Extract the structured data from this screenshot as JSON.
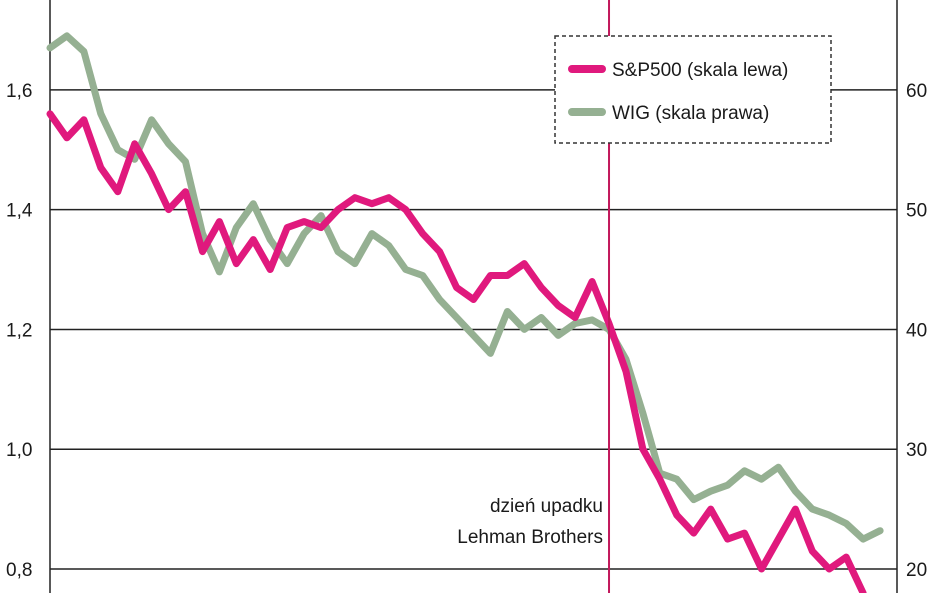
{
  "chart_data": {
    "type": "line",
    "title": "",
    "xlabel": "",
    "ylabel": "",
    "grid": true,
    "legend_position": "top-right",
    "y_left": {
      "ticks": [
        0.8,
        1.0,
        1.2,
        1.4,
        1.6
      ],
      "tick_labels": [
        "0,8",
        "1,0",
        "1,2",
        "1,4",
        "1,6"
      ],
      "range": [
        0.76,
        1.75
      ]
    },
    "y_right": {
      "ticks": [
        20,
        30,
        40,
        50,
        60
      ],
      "tick_labels": [
        "20",
        "30",
        "40",
        "50",
        "60"
      ],
      "range": [
        18,
        67.5
      ]
    },
    "x_index_range": [
      0,
      100
    ],
    "annotation": {
      "x": 66,
      "lines": [
        "dzień upadku",
        "Lehman Brothers"
      ]
    },
    "series": [
      {
        "name": "S&P500 (skala lewa)",
        "axis": "left",
        "color": "#e0197d",
        "x": [
          0,
          2,
          4,
          6,
          8,
          10,
          12,
          14,
          16,
          18,
          20,
          22,
          24,
          26,
          28,
          30,
          32,
          34,
          36,
          38,
          40,
          42,
          44,
          46,
          48,
          50,
          52,
          54,
          56,
          58,
          60,
          62,
          64,
          66,
          68,
          70,
          72,
          74,
          76,
          78,
          80,
          82,
          84,
          86,
          88,
          90,
          92,
          94,
          96
        ],
        "values": [
          1.56,
          1.52,
          1.55,
          1.47,
          1.43,
          1.51,
          1.46,
          1.4,
          1.43,
          1.33,
          1.38,
          1.31,
          1.35,
          1.3,
          1.37,
          1.38,
          1.37,
          1.4,
          1.42,
          1.41,
          1.42,
          1.4,
          1.36,
          1.33,
          1.27,
          1.25,
          1.29,
          1.29,
          1.31,
          1.27,
          1.24,
          1.22,
          1.28,
          1.21,
          1.13,
          1.0,
          0.95,
          0.89,
          0.86,
          0.9,
          0.85,
          0.86,
          0.8,
          0.85,
          0.9,
          0.83,
          0.8,
          0.82,
          0.76
        ]
      },
      {
        "name": "WIG (skala prawa)",
        "axis": "right",
        "color": "#95b092",
        "x": [
          0,
          2,
          4,
          6,
          8,
          10,
          12,
          14,
          16,
          18,
          20,
          22,
          24,
          26,
          28,
          30,
          32,
          34,
          36,
          38,
          40,
          42,
          44,
          46,
          48,
          50,
          52,
          54,
          56,
          58,
          60,
          62,
          64,
          66,
          68,
          70,
          72,
          74,
          76,
          78,
          80,
          82,
          84,
          86,
          88,
          90,
          92,
          94,
          96,
          98
        ],
        "values": [
          63.5,
          64.5,
          63.2,
          58.0,
          55.0,
          54.2,
          57.5,
          55.5,
          54.0,
          48.0,
          44.8,
          48.5,
          50.5,
          47.5,
          45.5,
          48.0,
          49.5,
          46.5,
          45.5,
          48.0,
          47.0,
          45.0,
          44.5,
          42.5,
          41.0,
          39.5,
          38.0,
          41.5,
          40.0,
          41.0,
          39.5,
          40.5,
          40.8,
          40.0,
          37.5,
          33.0,
          28.0,
          27.5,
          25.8,
          26.5,
          27.0,
          28.2,
          27.5,
          28.5,
          26.5,
          25.0,
          24.5,
          23.8,
          22.5,
          23.2
        ]
      }
    ]
  }
}
